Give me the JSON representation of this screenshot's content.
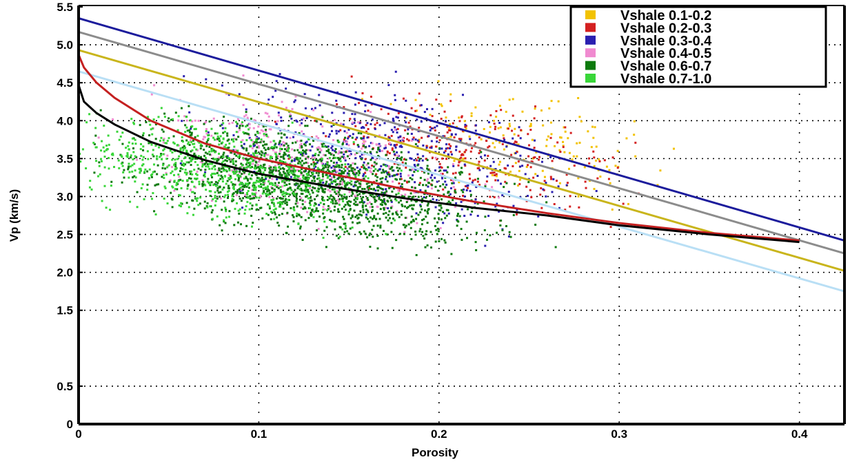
{
  "chart_data": {
    "type": "scatter",
    "title": "",
    "xlabel": "Porosity",
    "ylabel": "Vp (km/s)",
    "xlim": [
      0,
      0.425
    ],
    "ylim": [
      0,
      5.5
    ],
    "x_ticks": [
      0,
      0.1,
      0.2,
      0.3,
      0.4
    ],
    "x_tick_labels": [
      "0",
      "0.1",
      "0.2",
      "0.3",
      "0.4"
    ],
    "y_ticks": [
      0,
      0.5,
      1.5,
      2.0,
      2.5,
      3.0,
      3.5,
      4.0,
      4.5,
      5.0,
      5.5
    ],
    "y_tick_labels": [
      "0",
      "0.5",
      "1.5",
      "2.0",
      "2.5",
      "3.0",
      "3.5",
      "4.0",
      "4.5",
      "5.0",
      "5.5"
    ],
    "grid": true,
    "legend_position": "top-right",
    "series": [
      {
        "name": "Vshale 0.1-0.2",
        "color": "#f2c200",
        "center": [
          0.25,
          3.7
        ],
        "spread": [
          0.035,
          0.28
        ],
        "count": 160
      },
      {
        "name": "Vshale 0.2-0.3",
        "color": "#d42020",
        "center": [
          0.21,
          3.55
        ],
        "spread": [
          0.04,
          0.32
        ],
        "count": 320
      },
      {
        "name": "Vshale 0.3-0.4",
        "color": "#2a1fb0",
        "center": [
          0.17,
          3.55
        ],
        "spread": [
          0.045,
          0.38
        ],
        "count": 480
      },
      {
        "name": "Vshale 0.4-0.5",
        "color": "#f08ad0",
        "center": [
          0.12,
          3.5
        ],
        "spread": [
          0.04,
          0.35
        ],
        "count": 420
      },
      {
        "name": "Vshale 0.6-0.7",
        "color": "#0d7a0d",
        "center": [
          0.13,
          3.2
        ],
        "spread": [
          0.045,
          0.32
        ],
        "count": 1500
      },
      {
        "name": "Vshale 0.7-1.0",
        "color": "#39d639",
        "center": [
          0.08,
          3.35
        ],
        "spread": [
          0.04,
          0.3
        ],
        "count": 700
      }
    ],
    "trend_lines": [
      {
        "color": "#1c1c9c",
        "x": [
          0,
          0.425
        ],
        "y": [
          5.35,
          2.42
        ]
      },
      {
        "color": "#8c8c8c",
        "x": [
          0,
          0.425
        ],
        "y": [
          5.17,
          2.25
        ]
      },
      {
        "color": "#c9b51c",
        "x": [
          0,
          0.425
        ],
        "y": [
          4.93,
          2.02
        ]
      },
      {
        "color": "#b9dff5",
        "x": [
          0,
          0.425
        ],
        "y": [
          4.65,
          1.75
        ]
      },
      {
        "color": "#c42020",
        "x": [
          0,
          0.003,
          0.01,
          0.02,
          0.04,
          0.07,
          0.1,
          0.14,
          0.18,
          0.22,
          0.26,
          0.3,
          0.35,
          0.4
        ],
        "y": [
          4.87,
          4.7,
          4.5,
          4.3,
          4.0,
          3.7,
          3.5,
          3.3,
          3.1,
          2.93,
          2.78,
          2.65,
          2.52,
          2.42
        ]
      },
      {
        "color": "#000000",
        "x": [
          0,
          0.003,
          0.01,
          0.02,
          0.04,
          0.07,
          0.1,
          0.14,
          0.18,
          0.22,
          0.26,
          0.3,
          0.35,
          0.4
        ],
        "y": [
          4.47,
          4.25,
          4.1,
          3.95,
          3.72,
          3.48,
          3.3,
          3.13,
          2.98,
          2.85,
          2.75,
          2.62,
          2.5,
          2.4
        ]
      }
    ]
  }
}
